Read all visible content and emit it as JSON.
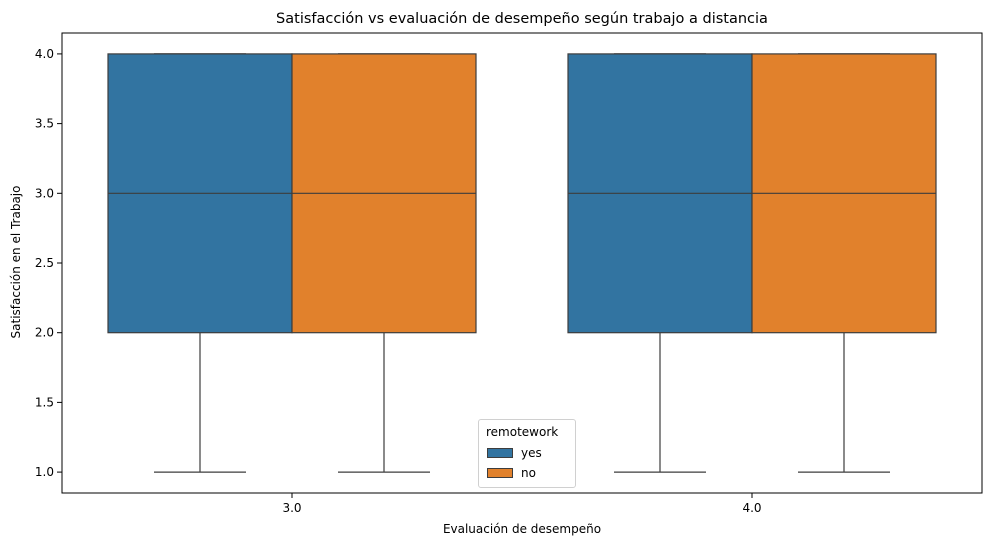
{
  "chart_data": {
    "type": "boxplot",
    "title": "Satisfacción vs evaluación de desempeño según trabajo a distancia",
    "xlabel": "Evaluación de desempeño",
    "ylabel": "Satisfacción en el Trabajo",
    "categories": [
      "3.0",
      "4.0"
    ],
    "ylim": [
      0.85,
      4.15
    ],
    "yticks": [
      "1.0",
      "1.5",
      "2.0",
      "2.5",
      "3.0",
      "3.5",
      "4.0"
    ],
    "grid": false,
    "legend": {
      "title": "remotework",
      "placement": "bottom-center"
    },
    "series": [
      {
        "name": "yes",
        "color": "#3274a1",
        "boxes": [
          {
            "category": "3.0",
            "min": 1.0,
            "q1": 2.0,
            "median": 3.0,
            "q3": 4.0,
            "max": 4.0
          },
          {
            "category": "4.0",
            "min": 1.0,
            "q1": 2.0,
            "median": 3.0,
            "q3": 4.0,
            "max": 4.0
          }
        ]
      },
      {
        "name": "no",
        "color": "#e1812c",
        "boxes": [
          {
            "category": "3.0",
            "min": 1.0,
            "q1": 2.0,
            "median": 3.0,
            "q3": 4.0,
            "max": 4.0
          },
          {
            "category": "4.0",
            "min": 1.0,
            "q1": 2.0,
            "median": 3.0,
            "q3": 4.0,
            "max": 4.0
          }
        ]
      }
    ]
  }
}
